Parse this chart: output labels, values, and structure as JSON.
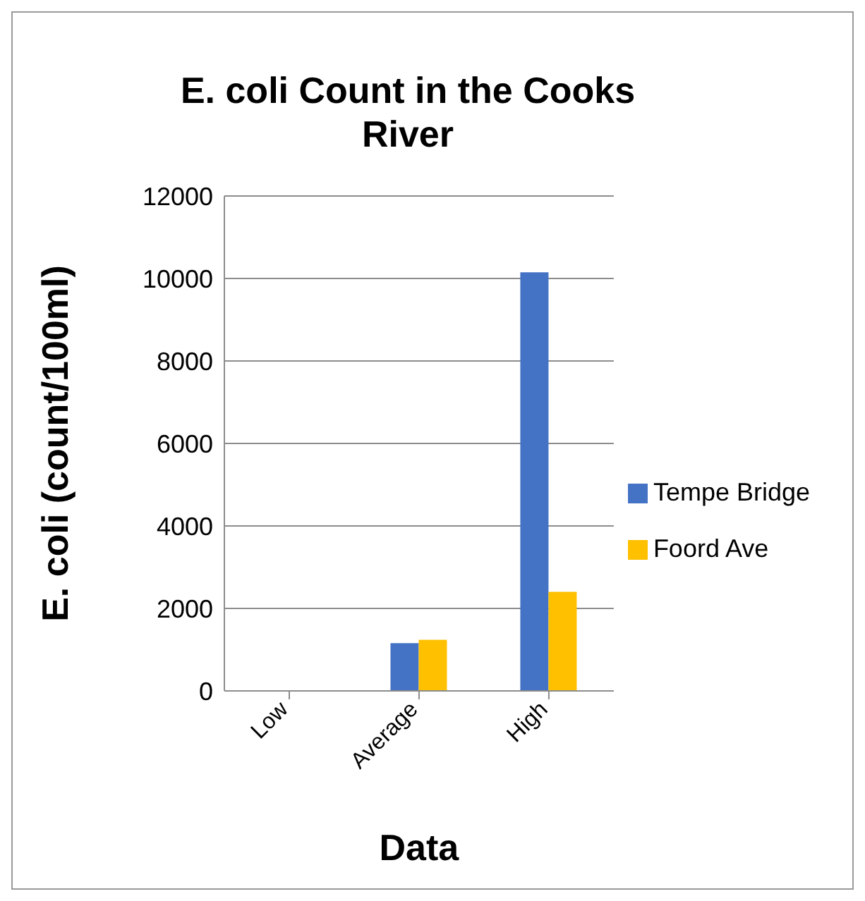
{
  "chart_data": {
    "type": "bar",
    "title": "E. coli Count in the Cooks River",
    "xlabel": "Data",
    "ylabel": "E. coli (count/100ml)",
    "categories": [
      "Low",
      "Average",
      "High"
    ],
    "series": [
      {
        "name": "Tempe Bridge",
        "color": "#4472c4",
        "values": [
          null,
          1160,
          10150
        ]
      },
      {
        "name": "Foord Ave",
        "color": "#ffc000",
        "values": [
          null,
          1240,
          2400
        ]
      }
    ],
    "ylim": [
      0,
      12000
    ],
    "yticks": [
      0,
      2000,
      4000,
      6000,
      8000,
      10000,
      12000
    ],
    "grid": "y",
    "legend": "right"
  }
}
